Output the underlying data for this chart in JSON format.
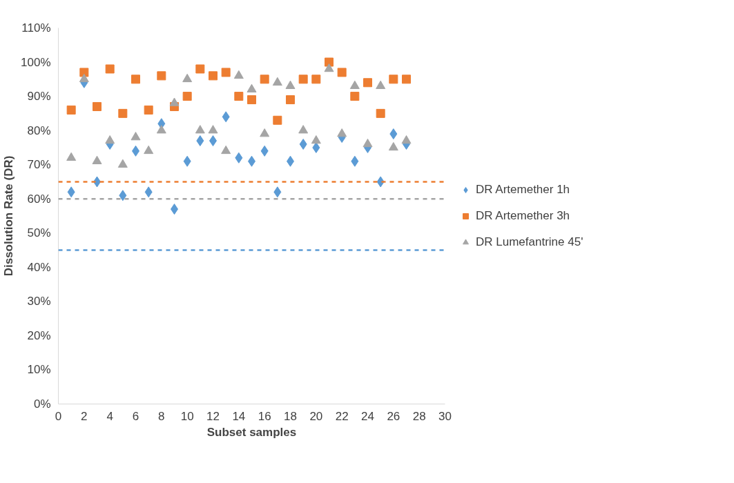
{
  "chart_data": {
    "type": "scatter",
    "xlabel": "Subset samples",
    "ylabel": "Dissolution Rate (DR)",
    "x": [
      1,
      2,
      3,
      4,
      5,
      6,
      7,
      8,
      9,
      10,
      11,
      12,
      13,
      14,
      15,
      16,
      17,
      18,
      19,
      20,
      21,
      22,
      23,
      24,
      25,
      26,
      27
    ],
    "series": [
      {
        "name": "DR Artemether 1h",
        "color": "#5b9bd5",
        "marker": "diamond",
        "values": [
          62,
          94,
          65,
          76,
          61,
          74,
          62,
          82,
          57,
          71,
          77,
          77,
          84,
          72,
          71,
          74,
          62,
          71,
          76,
          75,
          null,
          78,
          71,
          75,
          65,
          79,
          76
        ]
      },
      {
        "name": "DR Artemether 3h",
        "color": "#ed7d31",
        "marker": "square",
        "values": [
          86,
          97,
          87,
          98,
          85,
          95,
          86,
          96,
          87,
          90,
          98,
          96,
          97,
          90,
          89,
          95,
          83,
          89,
          95,
          95,
          100,
          97,
          90,
          94,
          85,
          95,
          95
        ]
      },
      {
        "name": "DR Lumefantrine 45'",
        "color": "#a5a5a5",
        "marker": "triangle",
        "values": [
          72,
          95,
          71,
          77,
          70,
          78,
          74,
          80,
          88,
          95,
          80,
          80,
          74,
          96,
          92,
          79,
          94,
          93,
          80,
          77,
          98,
          79,
          93,
          76,
          93,
          75,
          77
        ]
      }
    ],
    "ref_lines": [
      {
        "axis": "y",
        "value": 65,
        "color": "#ed7d31",
        "line_style": "dashed"
      },
      {
        "axis": "y",
        "value": 60,
        "color": "#a5a5a5",
        "line_style": "dashed"
      },
      {
        "axis": "y",
        "value": 45,
        "color": "#5b9bd5",
        "line_style": "dashed"
      }
    ],
    "xlim": [
      0,
      30
    ],
    "xticks": [
      0,
      2,
      4,
      6,
      8,
      10,
      12,
      14,
      16,
      18,
      20,
      22,
      24,
      26,
      28,
      30
    ],
    "ylim": [
      0,
      110
    ],
    "yticks": [
      {
        "value": 0,
        "label": "0%"
      },
      {
        "value": 10,
        "label": "10%"
      },
      {
        "value": 20,
        "label": "20%"
      },
      {
        "value": 30,
        "label": "30%"
      },
      {
        "value": 40,
        "label": "40%"
      },
      {
        "value": 50,
        "label": "50%"
      },
      {
        "value": 60,
        "label": "60%"
      },
      {
        "value": 70,
        "label": "70%"
      },
      {
        "value": 80,
        "label": "80%"
      },
      {
        "value": 90,
        "label": "90%"
      },
      {
        "value": 100,
        "label": "100%"
      },
      {
        "value": 110,
        "label": "110%"
      }
    ],
    "grid": false,
    "legend": "right"
  }
}
